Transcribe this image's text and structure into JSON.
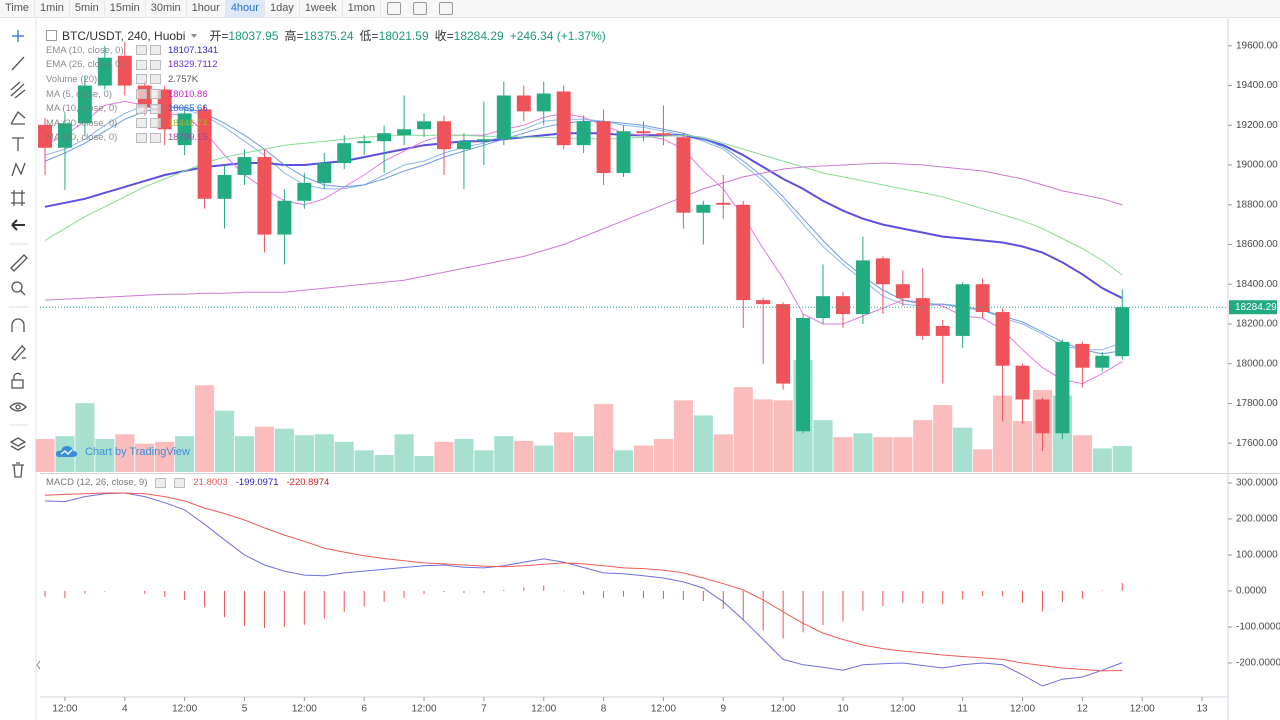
{
  "toolbar": [
    "Time",
    "1min",
    "5min",
    "15min",
    "30min",
    "1hour",
    "4hour",
    "1day",
    "1week",
    "1mon"
  ],
  "toolbar_active": 6,
  "watermark": "Chart by TradingView",
  "chart_data": [
    {
      "type": "candlestick",
      "title": "BTC/USDT, 240, Huobi",
      "quote_labels": [
        "开=",
        "高=",
        "低=",
        "收="
      ],
      "change": "+246.34 (+1.37%)",
      "up_color": "#22ab80",
      "down_color": "#f0525a",
      "open": [
        19202,
        19087,
        19210,
        19400,
        19550,
        19400,
        19380,
        19100,
        19280,
        18830,
        18950,
        19040,
        18650,
        18820,
        18910,
        19010,
        19110,
        19120,
        19150,
        19180,
        19220,
        19080,
        19120,
        19130,
        19350,
        19270,
        19370,
        19100,
        19220,
        18960,
        19170,
        19160,
        19140,
        18760,
        18810,
        18800,
        18320,
        18300,
        17660,
        18230,
        18340,
        18250,
        18530,
        18400,
        18330,
        18190,
        18140,
        18400,
        18260,
        17990,
        17820,
        17650,
        18100,
        17980,
        18037.95
      ],
      "high": [
        19237,
        19260,
        19450,
        19600,
        19620,
        19420,
        19400,
        19280,
        19300,
        19000,
        19080,
        19080,
        18880,
        18960,
        19060,
        19150,
        19150,
        19200,
        19350,
        19260,
        19250,
        19160,
        19320,
        19420,
        19400,
        19420,
        19400,
        19250,
        19280,
        19200,
        19220,
        19300,
        19160,
        18820,
        18950,
        18820,
        18330,
        18310,
        18250,
        18500,
        18360,
        18640,
        18540,
        18470,
        18480,
        18220,
        18410,
        18430,
        18280,
        18000,
        17830,
        18120,
        18110,
        18060,
        18375.24
      ],
      "low": [
        18950,
        18875,
        19150,
        19380,
        19350,
        19250,
        19100,
        19050,
        18780,
        18680,
        18900,
        18560,
        18500,
        18780,
        18880,
        18980,
        19050,
        18960,
        19100,
        19140,
        18950,
        18880,
        19000,
        19100,
        19220,
        19200,
        19080,
        19060,
        18900,
        18940,
        19120,
        19100,
        18680,
        18600,
        18730,
        18180,
        18000,
        17870,
        17650,
        18200,
        18180,
        18200,
        18250,
        18290,
        18120,
        17900,
        18080,
        18230,
        17710,
        17700,
        17560,
        17620,
        17880,
        17960,
        18021.59
      ],
      "close": [
        19087,
        19210,
        19400,
        19540,
        19400,
        19290,
        19180,
        19260,
        18830,
        18950,
        19040,
        18650,
        18820,
        18910,
        19010,
        19110,
        19120,
        19160,
        19180,
        19220,
        19080,
        19120,
        19130,
        19350,
        19270,
        19360,
        19100,
        19220,
        18960,
        19170,
        19160,
        19150,
        18760,
        18800,
        18800,
        18320,
        18300,
        17900,
        18230,
        18340,
        18250,
        18520,
        18400,
        18330,
        18140,
        18140,
        18400,
        18260,
        17990,
        17820,
        17650,
        18110,
        17980,
        18040,
        18284.29
      ],
      "series": [
        {
          "name": "EMA (10, close, 0)",
          "color": "#8ab8ec",
          "value_color": "#2a2ad0",
          "width": 1,
          "values": [
            19050,
            19080,
            19130,
            19200,
            19260,
            19300,
            19300,
            19280,
            19250,
            19190,
            19120,
            19050,
            18960,
            18900,
            18880,
            18880,
            18900,
            18950,
            19000,
            19020,
            19060,
            19090,
            19110,
            19150,
            19180,
            19220,
            19230,
            19230,
            19220,
            19200,
            19190,
            19170,
            19150,
            19120,
            19080,
            19000,
            18920,
            18820,
            18700,
            18590,
            18500,
            18420,
            18340,
            18300,
            18290,
            18300,
            18280,
            18270,
            18230,
            18200,
            18150,
            18090,
            18070,
            18070,
            18107.1341
          ]
        },
        {
          "name": "EMA (26, close, 0)",
          "color": "#5a4fe0",
          "value_color": "#6a2ad0",
          "width": 2,
          "values": [
            18790,
            18810,
            18830,
            18860,
            18890,
            18920,
            18950,
            18970,
            18990,
            19000,
            19010,
            19010,
            19000,
            19000,
            19010,
            19020,
            19040,
            19060,
            19080,
            19100,
            19110,
            19120,
            19120,
            19130,
            19140,
            19150,
            19160,
            19160,
            19160,
            19150,
            19150,
            19150,
            19150,
            19130,
            19100,
            19050,
            18990,
            18930,
            18880,
            18820,
            18770,
            18730,
            18700,
            18680,
            18660,
            18640,
            18630,
            18620,
            18610,
            18590,
            18560,
            18510,
            18450,
            18380,
            18329.7112
          ]
        },
        {
          "name": "Volume (20)",
          "type": "histogram",
          "up_color": "#a8e0cf",
          "down_color": "#fbbcbc",
          "value_color": "#555555",
          "value_label": "2.757K",
          "values": [
            3.5,
            3.8,
            7.3,
            3.5,
            4.0,
            3.0,
            3.2,
            3.8,
            9.2,
            6.5,
            3.8,
            4.8,
            4.6,
            3.9,
            4.0,
            3.2,
            2.3,
            1.8,
            4.0,
            1.7,
            3.2,
            3.5,
            2.3,
            3.8,
            3.3,
            2.8,
            4.2,
            3.8,
            7.2,
            2.3,
            2.8,
            3.5,
            7.6,
            6.0,
            4.0,
            9.0,
            7.7,
            7.6,
            11.9,
            5.5,
            3.7,
            4.1,
            3.7,
            3.7,
            5.5,
            7.1,
            4.7,
            2.4,
            8.1,
            5.4,
            8.7,
            8.1,
            3.9,
            2.5,
            2.757
          ]
        },
        {
          "name": "MA (5, close, 0)",
          "color": "#e47ae0",
          "value_color": "#d020d0",
          "width": 1,
          "values": [
            19100,
            19150,
            19220,
            19300,
            19320,
            19300,
            19260,
            19250,
            19170,
            19050,
            18950,
            18880,
            18820,
            18800,
            18830,
            18890,
            18950,
            19020,
            19070,
            19120,
            19150,
            19150,
            19150,
            19180,
            19200,
            19240,
            19260,
            19240,
            19200,
            19160,
            19150,
            19130,
            19080,
            18970,
            18880,
            18740,
            18580,
            18430,
            18250,
            18200,
            18200,
            18240,
            18280,
            18320,
            18310,
            18290,
            18240,
            18230,
            18170,
            18070,
            17980,
            17920,
            17900,
            17950,
            18010.86
          ]
        },
        {
          "name": "MA (10, close, 0)",
          "color": "#6d9be0",
          "value_color": "#3060d0",
          "width": 1,
          "values": [
            19020,
            19060,
            19110,
            19170,
            19230,
            19270,
            19290,
            19290,
            19260,
            19210,
            19150,
            19080,
            19000,
            18940,
            18900,
            18890,
            18900,
            18930,
            18970,
            19000,
            19040,
            19070,
            19100,
            19130,
            19160,
            19190,
            19210,
            19220,
            19220,
            19210,
            19200,
            19180,
            19160,
            19130,
            19090,
            19020,
            18940,
            18840,
            18730,
            18620,
            18520,
            18440,
            18370,
            18320,
            18300,
            18300,
            18290,
            18270,
            18240,
            18210,
            18160,
            18110,
            18070,
            18050,
            18065.66
          ]
        },
        {
          "name": "MA (30, close, 0)",
          "color": "#86dc94",
          "value_color": "#b0b020",
          "width": 1,
          "values": [
            18620,
            18680,
            18740,
            18790,
            18840,
            18890,
            18930,
            18970,
            19010,
            19040,
            19060,
            19080,
            19100,
            19110,
            19120,
            19130,
            19140,
            19145,
            19150,
            19150,
            19150,
            19150,
            19145,
            19145,
            19140,
            19140,
            19135,
            19135,
            19130,
            19135,
            19140,
            19145,
            19150,
            19140,
            19110,
            19080,
            19050,
            19020,
            18990,
            18960,
            18940,
            18920,
            18900,
            18880,
            18860,
            18840,
            18810,
            18780,
            18750,
            18720,
            18680,
            18630,
            18580,
            18520,
            18446.74
          ]
        },
        {
          "name": "MA (60, close, 0)",
          "color": "#cf78d6",
          "value_color": "#a040a0",
          "width": 1,
          "values": [
            18320,
            18325,
            18330,
            18335,
            18340,
            18345,
            18350,
            18350,
            18355,
            18355,
            18360,
            18360,
            18360,
            18370,
            18380,
            18390,
            18400,
            18410,
            18420,
            18440,
            18460,
            18480,
            18500,
            18520,
            18540,
            18570,
            18600,
            18640,
            18680,
            18720,
            18760,
            18800,
            18840,
            18880,
            18910,
            18940,
            18960,
            18980,
            18990,
            18995,
            19000,
            19005,
            19010,
            19005,
            19000,
            18990,
            18980,
            18970,
            18950,
            18930,
            18900,
            18870,
            18850,
            18830,
            18799.15
          ]
        }
      ],
      "xlim": [
        -0.25,
        59.3
      ],
      "xticks": [
        {
          "value": 1,
          "label": "12:00"
        },
        4,
        {
          "value": 7,
          "label": "12:00"
        },
        {
          "value": 10,
          "label": "5"
        },
        {
          "value": 13,
          "label": "12:00"
        },
        {
          "value": 16,
          "label": "6"
        },
        {
          "value": 19,
          "label": "12:00"
        },
        {
          "value": 22,
          "label": "7"
        },
        {
          "value": 25,
          "label": "12:00"
        },
        {
          "value": 28,
          "label": "8"
        },
        {
          "value": 31,
          "label": "12:00"
        },
        {
          "value": 34,
          "label": "9"
        },
        {
          "value": 37,
          "label": "12:00"
        },
        {
          "value": 40,
          "label": "10"
        },
        {
          "value": 43,
          "label": "12:00"
        },
        {
          "value": 46,
          "label": "11"
        },
        {
          "value": 49,
          "label": "12:00"
        },
        {
          "value": 52,
          "label": "12"
        },
        {
          "value": 55,
          "label": "12:00"
        },
        {
          "value": 58,
          "label": "13"
        }
      ],
      "ylim": [
        17455,
        19740
      ],
      "yticks": [
        {
          "value": 17600,
          "label": "17600.00"
        },
        {
          "value": 17800,
          "label": "17800.00"
        },
        {
          "value": 18000,
          "label": "18000.00"
        },
        {
          "value": 18200,
          "label": "18200.00"
        },
        {
          "value": 18400,
          "label": "18400.00"
        },
        {
          "value": 18600,
          "label": "18600.00"
        },
        {
          "value": 18800,
          "label": "18800.00"
        },
        {
          "value": 19000,
          "label": "19000.00"
        },
        {
          "value": 19200,
          "label": "19200.00"
        },
        {
          "value": 19400,
          "label": "19400.00"
        },
        {
          "value": 19600,
          "label": "19600.00"
        }
      ]
    },
    {
      "type": "macd",
      "title": "MACD (12, 26, close, 9)",
      "series": [
        {
          "type": "histogram",
          "color": "#ef5350",
          "values": [
            -16,
            -20,
            -8,
            -2,
            0,
            -8,
            -17,
            -25,
            -45,
            -73,
            -97,
            -103,
            -100,
            -94,
            -77,
            -58,
            -43,
            -30,
            -19,
            -8,
            -3,
            -6,
            -5,
            3,
            10,
            15,
            2,
            -10,
            -20,
            -16,
            -20,
            -22,
            -25,
            -28,
            -50,
            -83,
            -110,
            -132,
            -115,
            -95,
            -85,
            -55,
            -42,
            -33,
            -35,
            -36,
            -23,
            -14,
            -15,
            -33,
            -57,
            -31,
            -21,
            2,
            21.8003
          ]
        },
        {
          "color": "#6f6fe0",
          "value_color": "#2020c0",
          "values": [
            250,
            248,
            262,
            270,
            272,
            262,
            245,
            225,
            185,
            142,
            100,
            72,
            55,
            44,
            42,
            50,
            55,
            60,
            65,
            70,
            72,
            66,
            64,
            70,
            80,
            89,
            80,
            65,
            50,
            48,
            42,
            36,
            25,
            8,
            -30,
            -80,
            -135,
            -190,
            -205,
            -212,
            -220,
            -205,
            -202,
            -200,
            -207,
            -214,
            -205,
            -200,
            -205,
            -233,
            -264,
            -245,
            -239,
            -220,
            -199.0971
          ]
        },
        {
          "color": "#f05a5a",
          "value_color": "#d02020",
          "values": [
            266,
            268,
            270,
            272,
            272,
            270,
            262,
            250,
            230,
            215,
            197,
            175,
            155,
            138,
            119,
            108,
            98,
            90,
            84,
            78,
            75,
            72,
            69,
            67,
            70,
            74,
            78,
            75,
            70,
            64,
            62,
            58,
            50,
            36,
            20,
            3,
            -25,
            -58,
            -90,
            -117,
            -135,
            -150,
            -160,
            -167,
            -172,
            -178,
            -182,
            -186,
            -190,
            -200,
            -207,
            -214,
            -218,
            -222,
            -220.8974
          ]
        }
      ],
      "ylim": [
        -289,
        322
      ],
      "yticks": [
        {
          "value": 300,
          "label": "300.0000"
        },
        {
          "value": 200,
          "label": "200.0000"
        },
        {
          "value": 100,
          "label": "100.0000"
        },
        {
          "value": 0,
          "label": "0.0000"
        },
        {
          "value": -100,
          "label": "-100.0000"
        },
        {
          "value": -200,
          "label": "-200.0000"
        }
      ]
    }
  ]
}
